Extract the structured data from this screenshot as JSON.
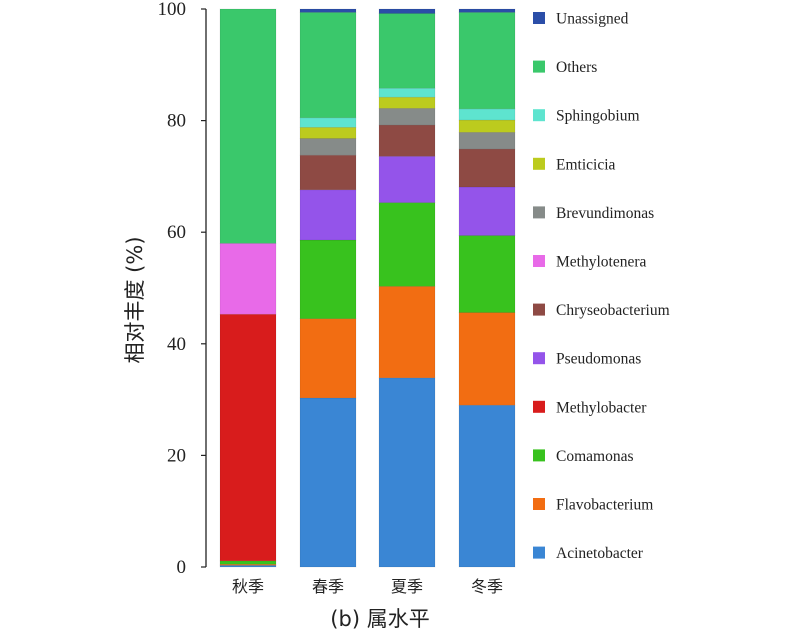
{
  "chart_data": {
    "type": "bar",
    "stacked": true,
    "ylabel": "相对丰度 (%)",
    "caption": "(b) 属水平",
    "ylim": [
      0,
      100
    ],
    "yticks": [
      0,
      20,
      40,
      60,
      80,
      100
    ],
    "grid": false,
    "legend_position": "right",
    "categories": [
      "秋季",
      "春季",
      "夏季",
      "冬季"
    ],
    "series": [
      {
        "name": "Acinetobacter",
        "color": "#3a86d4",
        "values": [
          0.3,
          30.3,
          33.9,
          29.0
        ]
      },
      {
        "name": "Flavobacterium",
        "color": "#f26d12",
        "values": [
          0.2,
          14.2,
          16.4,
          16.6
        ]
      },
      {
        "name": "Comamonas",
        "color": "#38c21e",
        "values": [
          0.6,
          14.1,
          15.0,
          13.8
        ]
      },
      {
        "name": "Methylobacter",
        "color": "#d81c1c",
        "values": [
          44.2,
          0.0,
          0.0,
          0.0
        ]
      },
      {
        "name": "Pseudomonas",
        "color": "#9454ea",
        "values": [
          0.0,
          9.0,
          8.3,
          8.7
        ]
      },
      {
        "name": "Chryseobacterium",
        "color": "#8e4a44",
        "values": [
          0.0,
          6.2,
          5.6,
          6.8
        ]
      },
      {
        "name": "Methylotenera",
        "color": "#e86ae8",
        "values": [
          12.7,
          0.0,
          0.0,
          0.0
        ]
      },
      {
        "name": "Brevundimonas",
        "color": "#868b89",
        "values": [
          0.0,
          3.0,
          3.0,
          3.0
        ]
      },
      {
        "name": "Emticicia",
        "color": "#bccb1e",
        "values": [
          0.0,
          2.0,
          2.0,
          2.2
        ]
      },
      {
        "name": "Sphingobium",
        "color": "#5ee4cf",
        "values": [
          0.0,
          1.7,
          1.6,
          2.0
        ]
      },
      {
        "name": "Others",
        "color": "#3ac86b",
        "values": [
          42.0,
          18.9,
          13.4,
          17.3
        ]
      },
      {
        "name": "Unassigned",
        "color": "#2b4ea8",
        "values": [
          0.0,
          0.6,
          0.8,
          0.6
        ]
      }
    ]
  }
}
